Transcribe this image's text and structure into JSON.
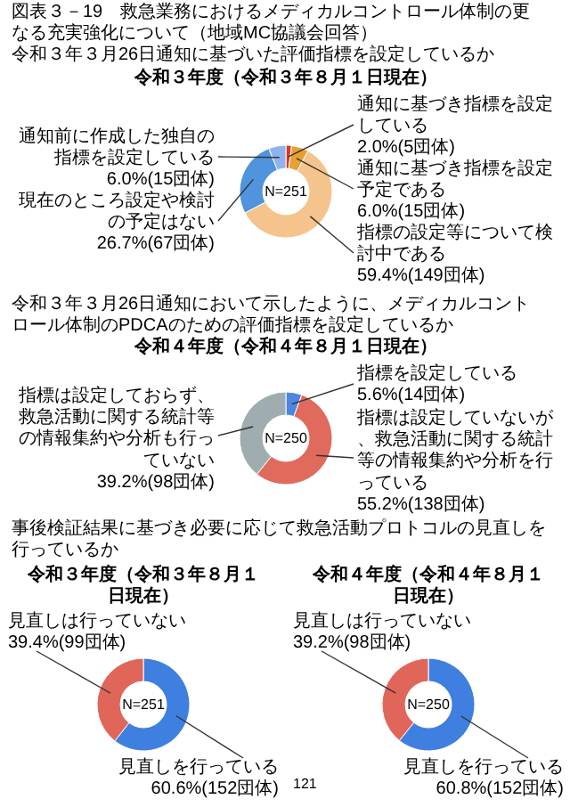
{
  "chart_data": [
    {
      "type": "donut",
      "title": "令和３年度（令和３年８月１日現在）",
      "subtitle": "令和３年３月26日通知に基づいた評価指標を設定しているか",
      "categories": [
        "通知に基づき指標を設定している",
        "通知に基づき指標を設定予定である",
        "指標の設定等について検討中である",
        "現在のところ設定や検討の予定はない",
        "通知前に作成した独自の指標を設定している"
      ],
      "values": [
        2.0,
        6.0,
        59.4,
        26.7,
        6.0
      ],
      "colors": [
        "#d9382b",
        "#e8a035",
        "#f5c38c",
        "#4f94dc",
        "#8fb3ee"
      ],
      "value_labels": [
        "2.0%(5団体)",
        "6.0%(15団体)",
        "59.4%(149団体)",
        "26.7%(67団体)",
        "6.0%(15団体)"
      ],
      "annotations": [
        "N=251",
        "図表３－19　救急業務におけるメディカルコントロール体制の更なる充実強化について（地域MC協議会回答）"
      ]
    },
    {
      "type": "donut",
      "title": "令和４年度（令和４年８月１日現在）",
      "subtitle": "令和３年３月26日通知において示したように、メディカルコントロール体制のPDCAのための評価指標を設定しているか",
      "categories": [
        "指標を設定している",
        "指標は設定していないが、救急活動に関する統計等の情報集約や分析を行っている",
        "指標は設定しておらず、救急活動に関する統計等の情報集約や分析も行っていない"
      ],
      "values": [
        5.6,
        55.2,
        39.2
      ],
      "colors": [
        "#4f86e0",
        "#e06a5c",
        "#9fadb0"
      ],
      "value_labels": [
        "5.6%(14団体)",
        "55.2%(138団体)",
        "39.2%(98団体)"
      ],
      "annotations": [
        "N=250"
      ]
    },
    {
      "type": "donut",
      "title": "令和３年度（令和３年８月１日現在）",
      "subtitle": "事後検証結果に基づき必要に応じて救急活動プロトコルの見直しを行っているか",
      "categories": [
        "見直しを行っている",
        "見直しは行っていない"
      ],
      "values": [
        60.6,
        39.4
      ],
      "colors": [
        "#3f7fe0",
        "#e0665a"
      ],
      "value_labels": [
        "60.6%(152団体)",
        "39.4%(99団体)"
      ],
      "annotations": [
        "N=251"
      ]
    },
    {
      "type": "donut",
      "title": "令和４年度（令和４年８月１日現在）",
      "categories": [
        "見直しを行っている",
        "見直しは行っていない"
      ],
      "values": [
        60.8,
        39.2
      ],
      "colors": [
        "#3f7fe0",
        "#e0665a"
      ],
      "value_labels": [
        "60.8%(152団体)",
        "39.2%(98団体)"
      ],
      "annotations": [
        "N=250",
        "121"
      ]
    }
  ]
}
